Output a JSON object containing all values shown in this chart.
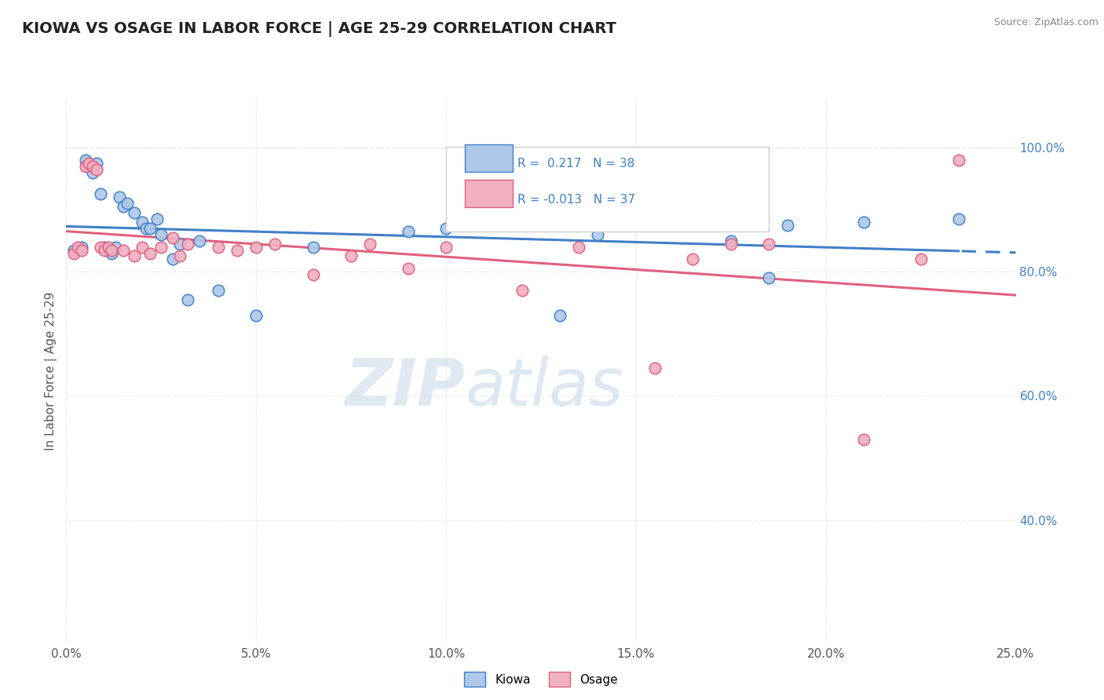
{
  "title": "KIOWA VS OSAGE IN LABOR FORCE | AGE 25-29 CORRELATION CHART",
  "source": "Source: ZipAtlas.com",
  "ylabel": "In Labor Force | Age 25-29",
  "xlim": [
    0.0,
    0.25
  ],
  "ylim": [
    0.2,
    1.08
  ],
  "xtick_labels": [
    "0.0%",
    "5.0%",
    "10.0%",
    "15.0%",
    "20.0%",
    "25.0%"
  ],
  "xtick_values": [
    0.0,
    0.05,
    0.1,
    0.15,
    0.2,
    0.25
  ],
  "ytick_labels": [
    "40.0%",
    "60.0%",
    "80.0%",
    "100.0%"
  ],
  "ytick_values": [
    0.4,
    0.6,
    0.8,
    1.0
  ],
  "kiowa_R": 0.217,
  "kiowa_N": 38,
  "osage_R": -0.013,
  "osage_N": 37,
  "kiowa_color": "#adc8e8",
  "kiowa_line_color": "#4080c8",
  "osage_color": "#f0b0c0",
  "osage_line_color": "#e06080",
  "watermark_zip": "ZIP",
  "watermark_atlas": "atlas",
  "background_color": "#ffffff",
  "grid_color": "#d8d8d8",
  "kiowa_scatter_x": [
    0.002,
    0.004,
    0.005,
    0.006,
    0.007,
    0.008,
    0.009,
    0.01,
    0.011,
    0.012,
    0.013,
    0.014,
    0.015,
    0.016,
    0.018,
    0.02,
    0.021,
    0.022,
    0.024,
    0.025,
    0.028,
    0.03,
    0.032,
    0.035,
    0.04,
    0.05,
    0.065,
    0.09,
    0.1,
    0.115,
    0.13,
    0.14,
    0.155,
    0.175,
    0.185,
    0.19,
    0.21,
    0.235
  ],
  "kiowa_scatter_y": [
    0.835,
    0.84,
    0.98,
    0.97,
    0.96,
    0.975,
    0.925,
    0.84,
    0.835,
    0.83,
    0.84,
    0.92,
    0.905,
    0.91,
    0.895,
    0.88,
    0.87,
    0.87,
    0.885,
    0.86,
    0.82,
    0.845,
    0.755,
    0.85,
    0.77,
    0.73,
    0.84,
    0.865,
    0.87,
    0.875,
    0.73,
    0.86,
    0.88,
    0.85,
    0.79,
    0.875,
    0.88,
    0.885
  ],
  "osage_scatter_x": [
    0.002,
    0.003,
    0.004,
    0.005,
    0.006,
    0.007,
    0.008,
    0.009,
    0.01,
    0.011,
    0.012,
    0.015,
    0.018,
    0.02,
    0.022,
    0.025,
    0.028,
    0.03,
    0.032,
    0.04,
    0.045,
    0.05,
    0.055,
    0.065,
    0.075,
    0.08,
    0.09,
    0.1,
    0.12,
    0.135,
    0.155,
    0.165,
    0.175,
    0.185,
    0.21,
    0.225,
    0.235
  ],
  "osage_scatter_y": [
    0.83,
    0.84,
    0.835,
    0.97,
    0.975,
    0.97,
    0.965,
    0.84,
    0.835,
    0.84,
    0.835,
    0.835,
    0.825,
    0.84,
    0.83,
    0.84,
    0.855,
    0.825,
    0.845,
    0.84,
    0.835,
    0.84,
    0.845,
    0.795,
    0.825,
    0.845,
    0.805,
    0.84,
    0.77,
    0.84,
    0.645,
    0.82,
    0.845,
    0.845,
    0.53,
    0.82,
    0.98
  ]
}
